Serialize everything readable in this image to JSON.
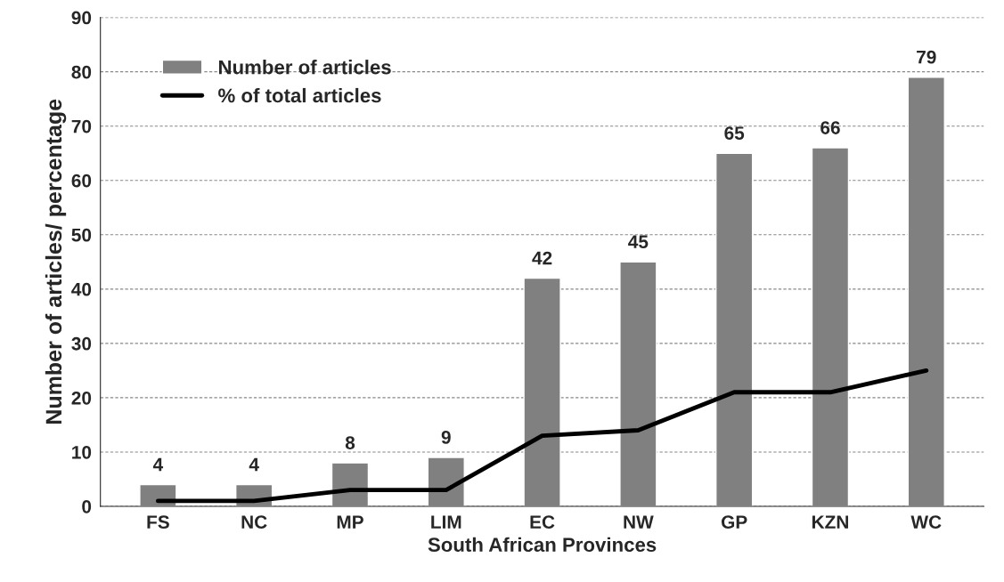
{
  "chart_data": {
    "type": "bar",
    "xlabel": "South African Provinces",
    "ylabel": "Number of articles/ percentage",
    "categories": [
      "FS",
      "NC",
      "MP",
      "LIM",
      "EC",
      "NW",
      "GP",
      "KZN",
      "WC"
    ],
    "series": [
      {
        "name": "Number of articles",
        "color": "#808080",
        "values": [
          4,
          4,
          8,
          9,
          42,
          45,
          65,
          66,
          79
        ],
        "value_labels": [
          "4",
          "4",
          "8",
          "9",
          "42",
          "45",
          "65",
          "66",
          "79"
        ]
      },
      {
        "name": "% of total articles",
        "type": "line",
        "color": "#000000",
        "values": [
          1,
          1,
          3,
          3,
          13,
          14,
          21,
          21,
          25
        ],
        "marker": "none",
        "line_style": "solid"
      }
    ],
    "ylim": [
      0,
      90
    ],
    "yticks": [
      0,
      10,
      20,
      30,
      40,
      50,
      60,
      70,
      80,
      90
    ],
    "grid": "y",
    "legend": "top left"
  }
}
